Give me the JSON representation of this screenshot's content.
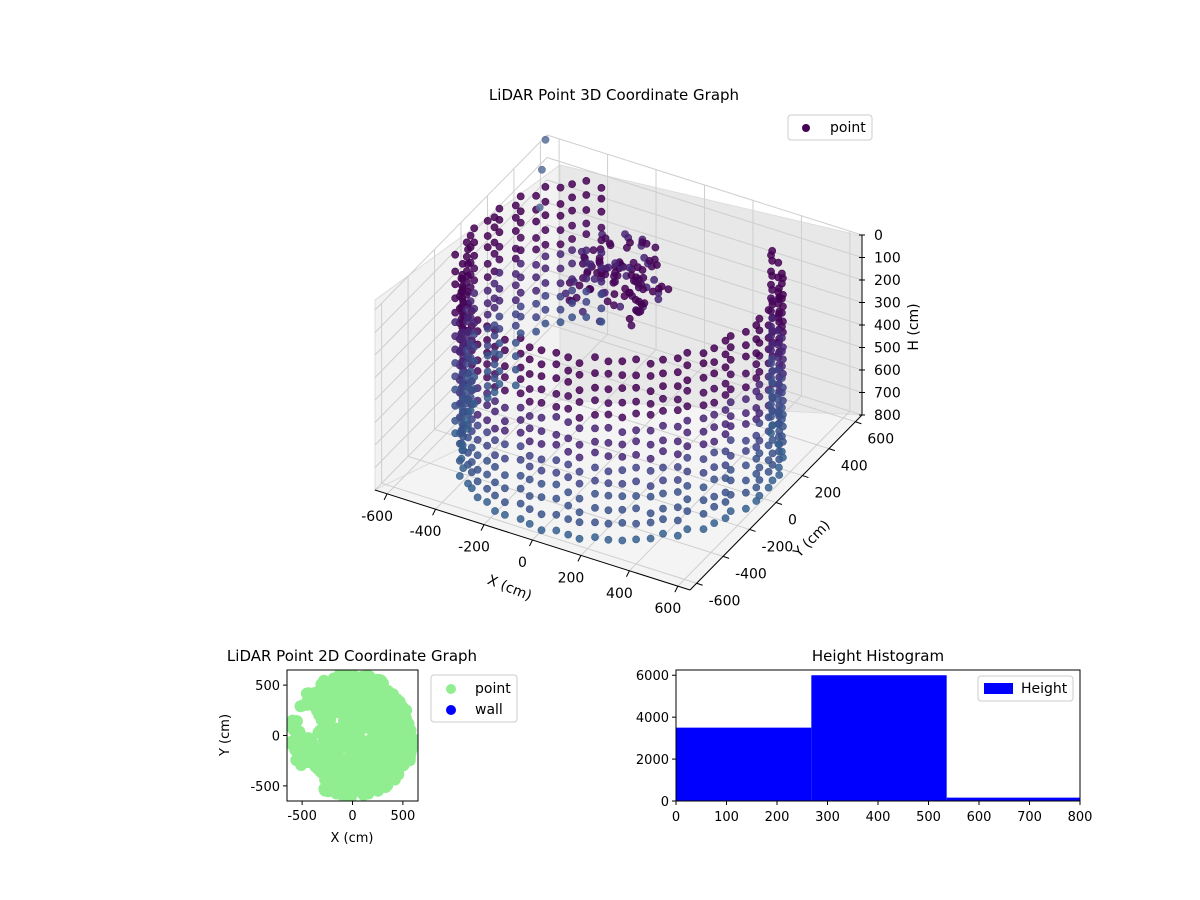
{
  "chart_data": [
    {
      "type": "scatter3d",
      "title": "LiDAR Point 3D Coordinate Graph",
      "xlabel": "X (cm)",
      "ylabel": "Y (cm)",
      "zlabel": "H (cm)",
      "xlim": [
        -650,
        650
      ],
      "ylim": [
        -650,
        650
      ],
      "zlim": [
        0,
        800
      ],
      "z_inverted": true,
      "xticks": [
        -600,
        -400,
        -200,
        0,
        200,
        400,
        600
      ],
      "yticks": [
        -600,
        -400,
        -200,
        0,
        200,
        400,
        600
      ],
      "zticks": [
        0,
        100,
        200,
        300,
        400,
        500,
        600,
        700,
        800
      ],
      "colormap": "viridis",
      "legend": [
        "point"
      ],
      "legend_placement": "top-right",
      "grid": true,
      "series": [
        {
          "name": "point",
          "description_values": {
            "radius_range_cm": [
              480,
              620
            ],
            "angle_range_deg": [
              -235,
              45
            ],
            "height_range_cm": [
              0,
              800
            ]
          }
        }
      ],
      "outliers": [
        {
          "x": -640,
          "y": 620,
          "h": 0
        },
        {
          "x": -600,
          "y": 520,
          "h": 60
        },
        {
          "x": -560,
          "y": 430,
          "h": 160
        }
      ]
    },
    {
      "type": "scatter",
      "title": "LiDAR Point 2D Coordinate Graph",
      "xlabel": "X (cm)",
      "ylabel": "Y (cm)",
      "xlim": [
        -650,
        650
      ],
      "ylim": [
        -650,
        650
      ],
      "xticks": [
        -500,
        0,
        500
      ],
      "yticks": [
        -500,
        0,
        500
      ],
      "legend": [
        "point",
        "wall"
      ],
      "legend_placement": "outside-right",
      "colors": {
        "point": "#90ee90",
        "wall": "#0000ff"
      },
      "point_region": {
        "center": [
          0,
          0
        ],
        "radius": 620,
        "notch_region_x": [
          -650,
          -150
        ]
      }
    },
    {
      "type": "bar",
      "title": "Height Histogram",
      "legend": [
        "Height"
      ],
      "legend_placement": "top-right",
      "color": "#0000ff",
      "xlim": [
        0,
        800
      ],
      "ylim": [
        0,
        6250
      ],
      "xticks": [
        0,
        100,
        200,
        300,
        400,
        500,
        600,
        700,
        800
      ],
      "yticks": [
        0,
        2000,
        4000,
        6000
      ],
      "bins": [
        {
          "from": 0,
          "to": 268,
          "count": 3500
        },
        {
          "from": 268,
          "to": 536,
          "count": 6000
        },
        {
          "from": 536,
          "to": 804,
          "count": 160
        }
      ]
    }
  ]
}
